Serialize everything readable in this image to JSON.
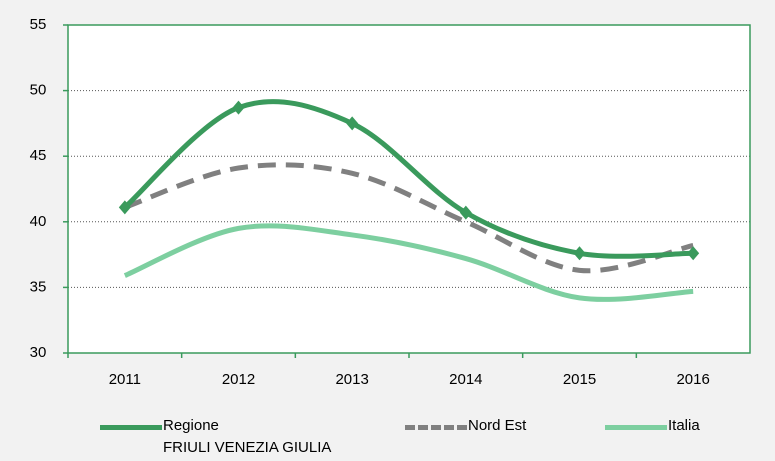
{
  "chart_data": {
    "type": "line",
    "categories": [
      "2011",
      "2012",
      "2013",
      "2014",
      "2015",
      "2016"
    ],
    "series": [
      {
        "name": "Regione\nFRIULI VENEZIA GIULIA",
        "color": "#3a9a5c",
        "values": [
          41.1,
          48.7,
          47.5,
          40.7,
          37.6,
          37.6
        ]
      },
      {
        "name": "Nord Est",
        "color": "#808080",
        "values": [
          41.1,
          44.1,
          43.7,
          40.0,
          36.3,
          38.2
        ]
      },
      {
        "name": "Italia",
        "color": "#7dcfa0",
        "values": [
          35.9,
          39.5,
          39.0,
          37.2,
          34.2,
          34.7
        ]
      }
    ],
    "ylim": [
      30,
      55
    ],
    "yticks": [
      30,
      35,
      40,
      45,
      50,
      55
    ],
    "grid": true
  }
}
